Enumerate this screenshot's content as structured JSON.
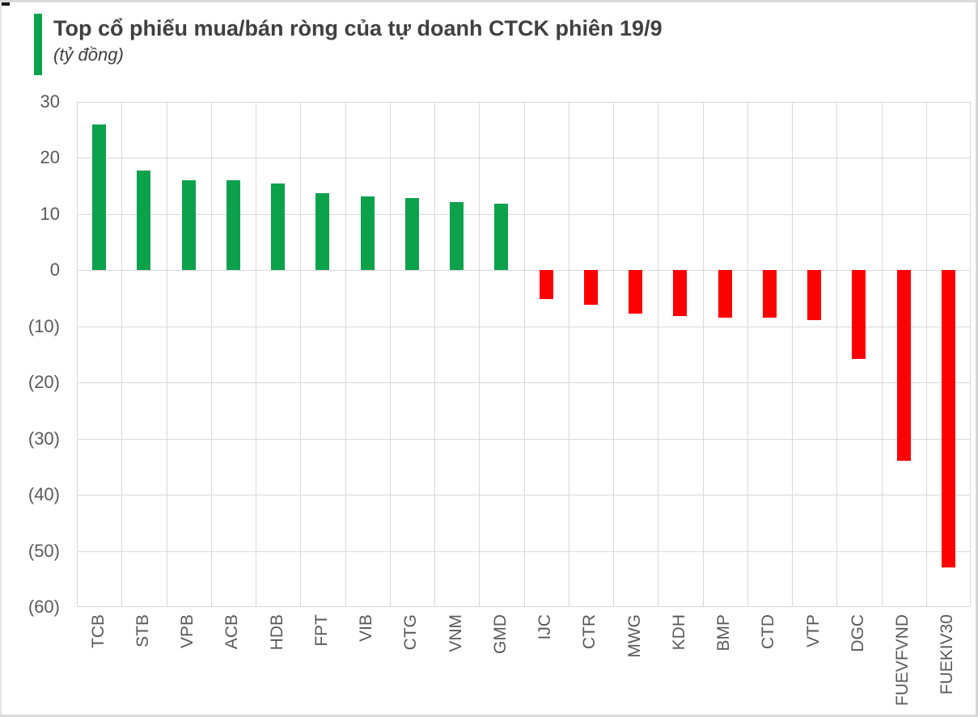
{
  "page": {
    "background": "#ffffff",
    "frame_border_color": "#dbdbdb"
  },
  "header": {
    "title": "Top cổ phiếu mua/bán ròng của tự doanh CTCK phiên 19/9",
    "subtitle": "(tỷ đồng)",
    "accent_color": "#0ca24c",
    "title_color": "#404040"
  },
  "chart_data": {
    "type": "bar",
    "title": "Top cổ phiếu mua/bán ròng của tự doanh CTCK phiên 19/9",
    "unit_label": "(tỷ đồng)",
    "categories": [
      "TCB",
      "STB",
      "VPB",
      "ACB",
      "HDB",
      "FPT",
      "VIB",
      "CTG",
      "VNM",
      "GMD",
      "IJC",
      "CTR",
      "MWG",
      "KDH",
      "BMP",
      "CTD",
      "VTP",
      "DGC",
      "FUEVFVND",
      "FUEKIV30"
    ],
    "values": [
      26.0,
      17.8,
      16.1,
      16.0,
      15.5,
      13.8,
      13.2,
      12.9,
      12.1,
      11.9,
      -5.1,
      -6.2,
      -7.8,
      -8.2,
      -8.4,
      -8.4,
      -8.9,
      -15.8,
      -34.0,
      -53.0
    ],
    "positive_color": "#0ca24c",
    "negative_color": "#ff0000",
    "ylim": [
      -60,
      30
    ],
    "ytick_values": [
      30,
      20,
      10,
      0,
      -10,
      -20,
      -30,
      -40,
      -50,
      -60
    ],
    "ytick_labels": [
      "30",
      "20",
      "10",
      "0",
      "(10)",
      "(20)",
      "(30)",
      "(40)",
      "(50)",
      "(60)"
    ],
    "grid": true,
    "gridline_color": "#d9d9d9",
    "axis_text_color": "#595959",
    "legend_position": "none",
    "xlabel": "",
    "ylabel": ""
  }
}
